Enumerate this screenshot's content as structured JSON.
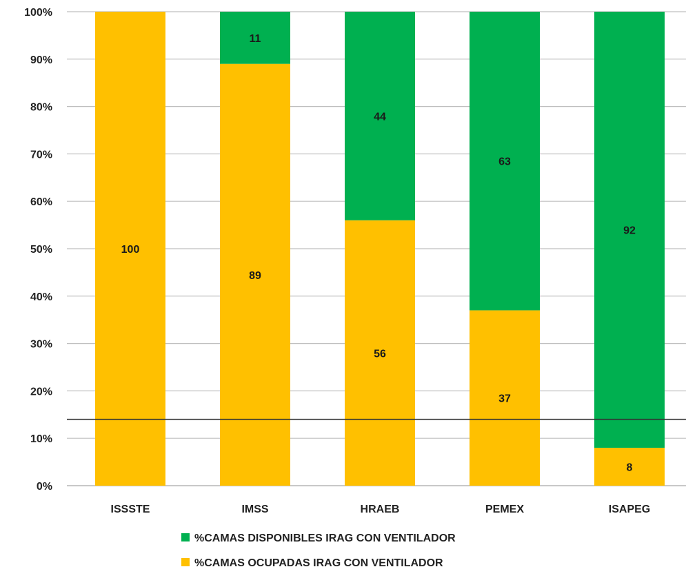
{
  "chart_data": {
    "type": "bar",
    "stacked": true,
    "categories": [
      "ISSSTE",
      "IMSS",
      "HRAEB",
      "PEMEX",
      "ISAPEG"
    ],
    "series": [
      {
        "name": "%CAMAS OCUPADAS IRAG CON VENTILADOR",
        "color": "#FFC000",
        "values": [
          100,
          89,
          56,
          37,
          8
        ]
      },
      {
        "name": "%CAMAS DISPONIBLES IRAG  CON VENTILADOR",
        "color": "#00B050",
        "values": [
          0,
          11,
          44,
          63,
          92
        ]
      }
    ],
    "ylim": [
      0,
      100
    ],
    "yticks": [
      "0%",
      "10%",
      "20%",
      "30%",
      "40%",
      "50%",
      "60%",
      "70%",
      "80%",
      "90%",
      "100%"
    ],
    "reference_line": 14,
    "grid": true,
    "legend_position": "bottom",
    "legend_order": [
      1,
      0
    ]
  }
}
